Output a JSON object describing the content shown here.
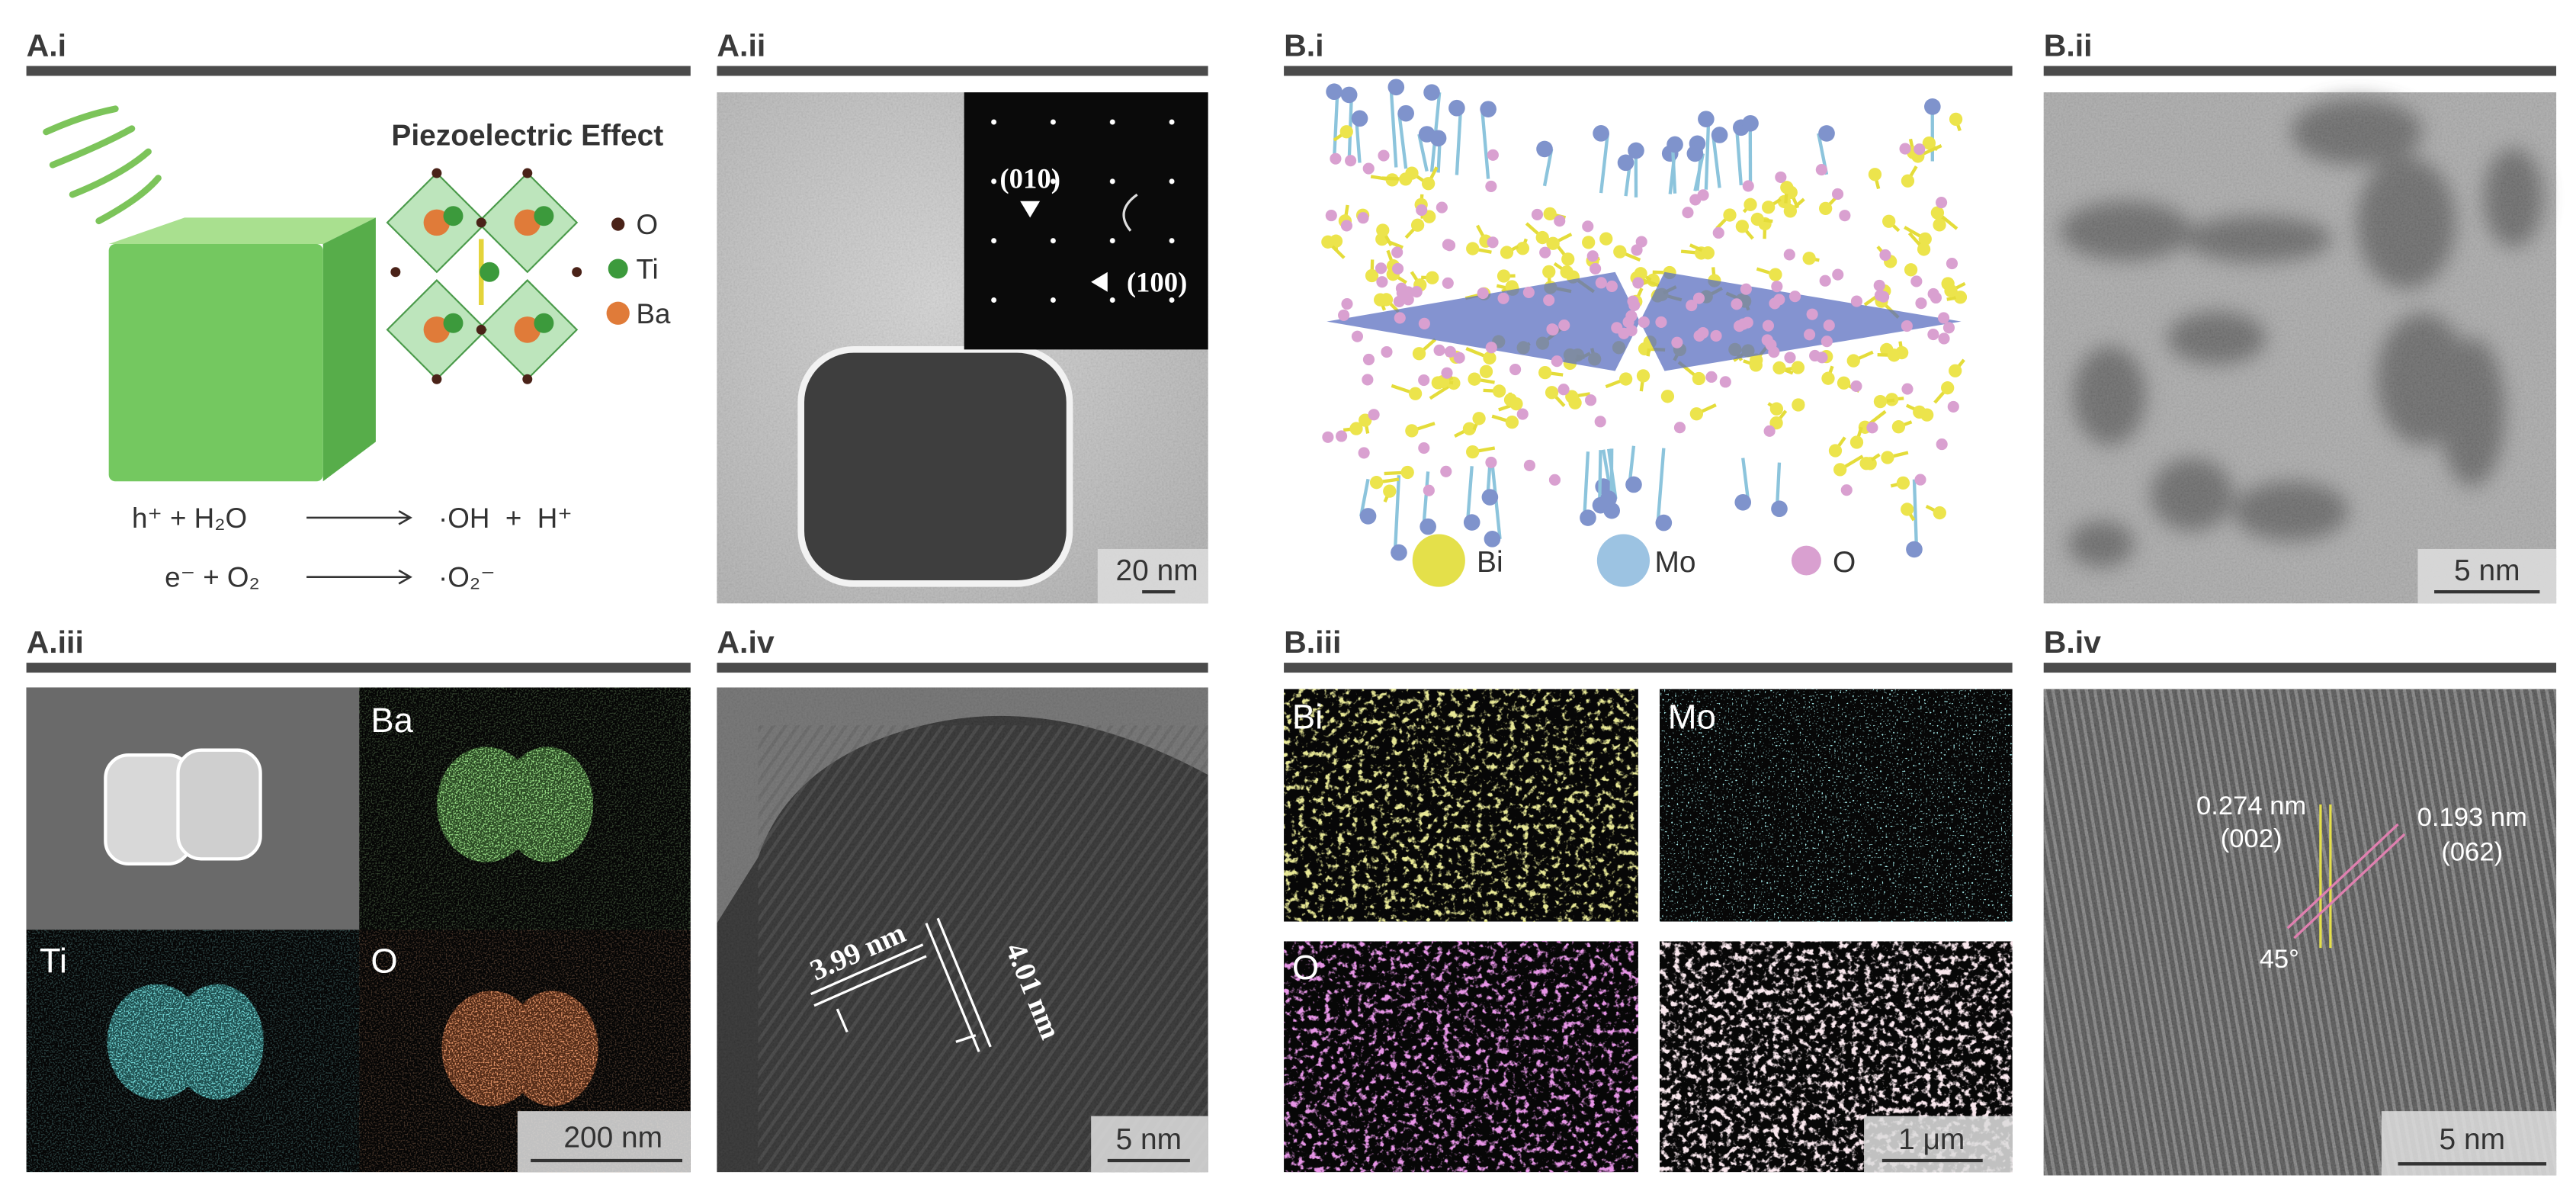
{
  "panels": [
    {
      "label": "A.i",
      "heading": "Piezoelectric Effect",
      "legend": [
        "O",
        "Ti",
        "Ba"
      ],
      "reactions": [
        {
          "left": "h⁺ + H₂O",
          "right": "·OH  +  H⁺"
        },
        {
          "left": "e⁻ + O₂",
          "right": "·O₂⁻"
        }
      ]
    },
    {
      "label": "A.ii",
      "annotations": [
        "(010)",
        "(100)"
      ],
      "scale_bar": "20 nm"
    },
    {
      "label": "B.i",
      "legend": [
        "Bi",
        "Mo",
        "O"
      ]
    },
    {
      "label": "B.ii",
      "scale_bar": "5 nm"
    },
    {
      "label": "A.iii",
      "maps": [
        "Ba",
        "Ti",
        "O"
      ],
      "scale_bar": "200 nm"
    },
    {
      "label": "A.iv",
      "annotations": [
        "3.99 nm",
        "4.01 nm"
      ],
      "scale_bar": "5 nm"
    },
    {
      "label": "B.iii",
      "maps": [
        "Bi",
        "Mo",
        "O"
      ],
      "scale_bar": "1 μm"
    },
    {
      "label": "B.iv",
      "annotations": [
        "0.274 nm",
        "(002)",
        "0.193 nm",
        "(062)",
        "45°"
      ],
      "scale_bar": "5 nm"
    }
  ]
}
